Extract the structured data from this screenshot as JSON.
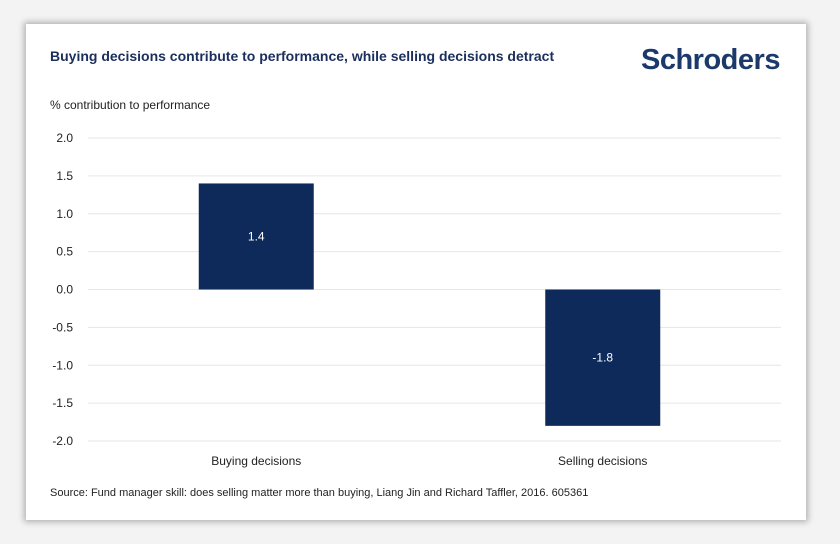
{
  "brand": {
    "name": "Schroders",
    "color": "#1b3a6b"
  },
  "chart_data": {
    "type": "bar",
    "title": "Buying decisions contribute to performance, while selling decisions detract",
    "ylabel": "% contribution to performance",
    "xlabel": "",
    "categories": [
      "Buying decisions",
      "Selling decisions"
    ],
    "values": [
      1.4,
      -1.8
    ],
    "data_labels": [
      "1.4",
      "-1.8"
    ],
    "ylim": [
      -2.0,
      2.0
    ],
    "yticks": [
      2.0,
      1.5,
      1.0,
      0.5,
      0.0,
      -0.5,
      -1.0,
      -1.5,
      -2.0
    ],
    "ytick_labels": [
      "2.0",
      "1.5",
      "1.0",
      "0.5",
      "0.0",
      "-0.5",
      "-1.0",
      "-1.5",
      "-2.0"
    ],
    "grid": true,
    "bar_color": "#0d2a5a",
    "grid_color": "#e6e6e6",
    "source": "Source: Fund manager skill: does selling matter more than buying, Liang Jin and Richard Taffler, 2016. 605361"
  }
}
